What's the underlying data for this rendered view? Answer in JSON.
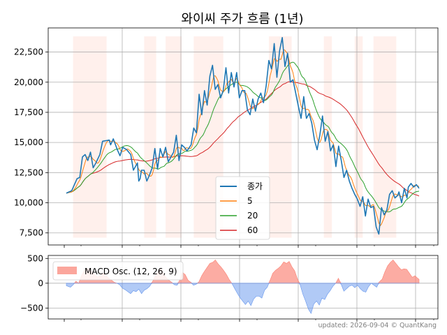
{
  "chart_data": [
    {
      "type": "line",
      "title": "와이씨 주가 흐름 (1년)",
      "xlabel": "",
      "ylabel": "",
      "ylim": [
        6500,
        24500
      ],
      "yticks": [
        7500,
        10000,
        12500,
        15000,
        17500,
        20000,
        22500
      ],
      "ytick_labels": [
        "7,500",
        "10,000",
        "12,500",
        "15,000",
        "17,500",
        "20,000",
        "22,500"
      ],
      "grid": true,
      "legend_position": "lower-center",
      "x_count": 248,
      "shade_color": "#fff0ec",
      "shade_ranges": [
        [
          5,
          30
        ],
        [
          58,
          67
        ],
        [
          74,
          86
        ],
        [
          95,
          117
        ],
        [
          151,
          168
        ],
        [
          192,
          198
        ],
        [
          215,
          221
        ],
        [
          229,
          246
        ]
      ],
      "series": [
        {
          "name": "종가",
          "color": "#1f77b4",
          "width": 1.6,
          "anchors": [
            [
              0,
              10800
            ],
            [
              4,
              11000
            ],
            [
              8,
              12000
            ],
            [
              10,
              12100
            ],
            [
              12,
              13800
            ],
            [
              14,
              14000
            ],
            [
              16,
              13500
            ],
            [
              18,
              14200
            ],
            [
              20,
              12900
            ],
            [
              22,
              13300
            ],
            [
              25,
              14000
            ],
            [
              27,
              15100
            ],
            [
              32,
              15200
            ],
            [
              33,
              14800
            ],
            [
              35,
              15300
            ],
            [
              38,
              14400
            ],
            [
              40,
              13900
            ],
            [
              42,
              14600
            ],
            [
              45,
              14400
            ],
            [
              48,
              14000
            ],
            [
              50,
              12700
            ],
            [
              53,
              13300
            ],
            [
              54,
              11800
            ],
            [
              55,
              12000
            ],
            [
              56,
              12700
            ],
            [
              58,
              12700
            ],
            [
              60,
              11800
            ],
            [
              62,
              12300
            ],
            [
              64,
              12900
            ],
            [
              66,
              14500
            ],
            [
              68,
              12800
            ],
            [
              70,
              14500
            ],
            [
              72,
              13800
            ],
            [
              74,
              14600
            ],
            [
              76,
              13400
            ],
            [
              78,
              13800
            ],
            [
              80,
              14200
            ],
            [
              82,
              15600
            ],
            [
              84,
              13500
            ],
            [
              86,
              14800
            ],
            [
              88,
              14600
            ],
            [
              90,
              14300
            ],
            [
              93,
              14800
            ],
            [
              95,
              16200
            ],
            [
              97,
              15800
            ],
            [
              99,
              19000
            ],
            [
              101,
              17300
            ],
            [
              103,
              19300
            ],
            [
              105,
              18100
            ],
            [
              107,
              20500
            ],
            [
              109,
              21400
            ],
            [
              111,
              19400
            ],
            [
              113,
              19800
            ],
            [
              115,
              18700
            ],
            [
              117,
              19300
            ],
            [
              119,
              21200
            ],
            [
              121,
              19100
            ],
            [
              123,
              20800
            ],
            [
              125,
              19600
            ],
            [
              127,
              20800
            ],
            [
              129,
              18700
            ],
            [
              131,
              19300
            ],
            [
              133,
              19300
            ],
            [
              135,
              17700
            ],
            [
              137,
              17300
            ],
            [
              139,
              18600
            ],
            [
              141,
              17600
            ],
            [
              143,
              18600
            ],
            [
              145,
              19100
            ],
            [
              147,
              18300
            ],
            [
              149,
              19700
            ],
            [
              151,
              21800
            ],
            [
              153,
              21100
            ],
            [
              155,
              23200
            ],
            [
              157,
              20400
            ],
            [
              159,
              22600
            ],
            [
              161,
              23700
            ],
            [
              163,
              21300
            ],
            [
              165,
              22400
            ],
            [
              167,
              20000
            ],
            [
              169,
              20200
            ],
            [
              171,
              19100
            ],
            [
              173,
              18000
            ],
            [
              175,
              17000
            ],
            [
              177,
              18800
            ],
            [
              179,
              17000
            ],
            [
              181,
              17400
            ],
            [
              183,
              16600
            ],
            [
              185,
              15200
            ],
            [
              187,
              14400
            ],
            [
              189,
              15600
            ],
            [
              191,
              17200
            ],
            [
              193,
              15100
            ],
            [
              195,
              15900
            ],
            [
              197,
              14300
            ],
            [
              199,
              14800
            ],
            [
              201,
              13000
            ],
            [
              203,
              14700
            ],
            [
              205,
              13500
            ],
            [
              207,
              12100
            ],
            [
              209,
              12700
            ],
            [
              211,
              11800
            ],
            [
              213,
              11200
            ],
            [
              215,
              10700
            ],
            [
              217,
              10300
            ],
            [
              219,
              9700
            ],
            [
              221,
              10500
            ],
            [
              223,
              8900
            ],
            [
              225,
              10300
            ],
            [
              227,
              9600
            ],
            [
              229,
              9700
            ],
            [
              231,
              8000
            ],
            [
              233,
              7400
            ],
            [
              235,
              9600
            ],
            [
              237,
              9000
            ],
            [
              239,
              9400
            ],
            [
              241,
              10700
            ],
            [
              243,
              11000
            ],
            [
              245,
              10400
            ],
            [
              247,
              10600
            ],
            [
              248,
              10900
            ],
            [
              250,
              10000
            ],
            [
              252,
              11200
            ],
            [
              254,
              10400
            ],
            [
              255,
              11300
            ],
            [
              257,
              11600
            ],
            [
              259,
              11300
            ],
            [
              261,
              11500
            ],
            [
              263,
              11200
            ]
          ]
        },
        {
          "name": "5",
          "color": "#ff7f0e",
          "width": 1.0,
          "ma": 5
        },
        {
          "name": "20",
          "color": "#2ca02c",
          "width": 1.0,
          "ma": 20
        },
        {
          "name": "60",
          "color": "#d62728",
          "width": 1.0,
          "ma": 60
        }
      ]
    },
    {
      "type": "area",
      "ylim": [
        -720,
        560
      ],
      "yticks": [
        -500,
        0,
        500
      ],
      "ytick_labels": [
        "−500",
        "0",
        "500"
      ],
      "grid": true,
      "legend_position": "upper-left",
      "series": [
        {
          "name": "MACD Osc. (12, 26, 9)",
          "positive_color": "#fa8072",
          "negative_color": "#6495ed",
          "anchors": [
            [
              0,
              -50
            ],
            [
              3,
              -80
            ],
            [
              5,
              -30
            ],
            [
              7,
              40
            ],
            [
              9,
              0
            ],
            [
              11,
              150
            ],
            [
              13,
              250
            ],
            [
              15,
              300
            ],
            [
              17,
              280
            ],
            [
              19,
              220
            ],
            [
              21,
              160
            ],
            [
              23,
              120
            ],
            [
              25,
              170
            ],
            [
              27,
              200
            ],
            [
              29,
              150
            ],
            [
              31,
              100
            ],
            [
              33,
              60
            ],
            [
              35,
              20
            ],
            [
              37,
              0
            ],
            [
              39,
              -30
            ],
            [
              41,
              -100
            ],
            [
              43,
              -130
            ],
            [
              45,
              -170
            ],
            [
              47,
              -210
            ],
            [
              49,
              -150
            ],
            [
              51,
              -170
            ],
            [
              53,
              -120
            ],
            [
              55,
              -210
            ],
            [
              57,
              -140
            ],
            [
              59,
              -110
            ],
            [
              61,
              -60
            ],
            [
              63,
              30
            ],
            [
              65,
              140
            ],
            [
              67,
              230
            ],
            [
              69,
              300
            ],
            [
              71,
              190
            ],
            [
              73,
              110
            ],
            [
              75,
              60
            ],
            [
              77,
              20
            ],
            [
              79,
              -30
            ],
            [
              81,
              -40
            ],
            [
              83,
              70
            ],
            [
              85,
              220
            ],
            [
              87,
              170
            ],
            [
              89,
              60
            ],
            [
              91,
              20
            ],
            [
              93,
              -40
            ],
            [
              95,
              -20
            ],
            [
              97,
              30
            ],
            [
              99,
              150
            ],
            [
              101,
              240
            ],
            [
              103,
              320
            ],
            [
              105,
              400
            ],
            [
              107,
              420
            ],
            [
              109,
              470
            ],
            [
              111,
              390
            ],
            [
              113,
              330
            ],
            [
              115,
              260
            ],
            [
              117,
              180
            ],
            [
              119,
              80
            ],
            [
              121,
              0
            ],
            [
              123,
              -100
            ],
            [
              125,
              -200
            ],
            [
              127,
              -290
            ],
            [
              129,
              -360
            ],
            [
              131,
              -430
            ],
            [
              133,
              -360
            ],
            [
              135,
              -450
            ],
            [
              137,
              -320
            ],
            [
              139,
              -260
            ],
            [
              141,
              -260
            ],
            [
              143,
              -300
            ],
            [
              145,
              -140
            ],
            [
              147,
              -80
            ],
            [
              149,
              60
            ],
            [
              151,
              200
            ],
            [
              153,
              260
            ],
            [
              155,
              300
            ],
            [
              157,
              350
            ],
            [
              159,
              430
            ],
            [
              161,
              400
            ],
            [
              163,
              440
            ],
            [
              165,
              330
            ],
            [
              167,
              250
            ],
            [
              169,
              90
            ],
            [
              171,
              -30
            ],
            [
              173,
              -220
            ],
            [
              175,
              -360
            ],
            [
              177,
              -520
            ],
            [
              179,
              -610
            ],
            [
              181,
              -420
            ],
            [
              183,
              -360
            ],
            [
              185,
              -440
            ],
            [
              187,
              -300
            ],
            [
              189,
              -330
            ],
            [
              191,
              -220
            ],
            [
              193,
              -150
            ],
            [
              195,
              -60
            ],
            [
              197,
              0
            ],
            [
              199,
              100
            ],
            [
              201,
              -20
            ],
            [
              203,
              -160
            ],
            [
              205,
              -110
            ],
            [
              207,
              -60
            ],
            [
              209,
              -40
            ],
            [
              211,
              -90
            ],
            [
              213,
              -40
            ],
            [
              215,
              -110
            ],
            [
              217,
              -160
            ],
            [
              219,
              -180
            ],
            [
              221,
              -70
            ],
            [
              223,
              0
            ],
            [
              225,
              -40
            ],
            [
              227,
              -80
            ],
            [
              229,
              30
            ],
            [
              231,
              80
            ],
            [
              233,
              230
            ],
            [
              235,
              350
            ],
            [
              237,
              420
            ],
            [
              239,
              470
            ],
            [
              241,
              400
            ],
            [
              243,
              330
            ],
            [
              245,
              270
            ],
            [
              247,
              290
            ],
            [
              249,
              280
            ],
            [
              251,
              200
            ],
            [
              253,
              120
            ],
            [
              255,
              150
            ],
            [
              257,
              100
            ],
            [
              258,
              80
            ]
          ]
        }
      ]
    }
  ],
  "footer": {
    "text": "updated: 2026-09-04 © QuantKang"
  }
}
